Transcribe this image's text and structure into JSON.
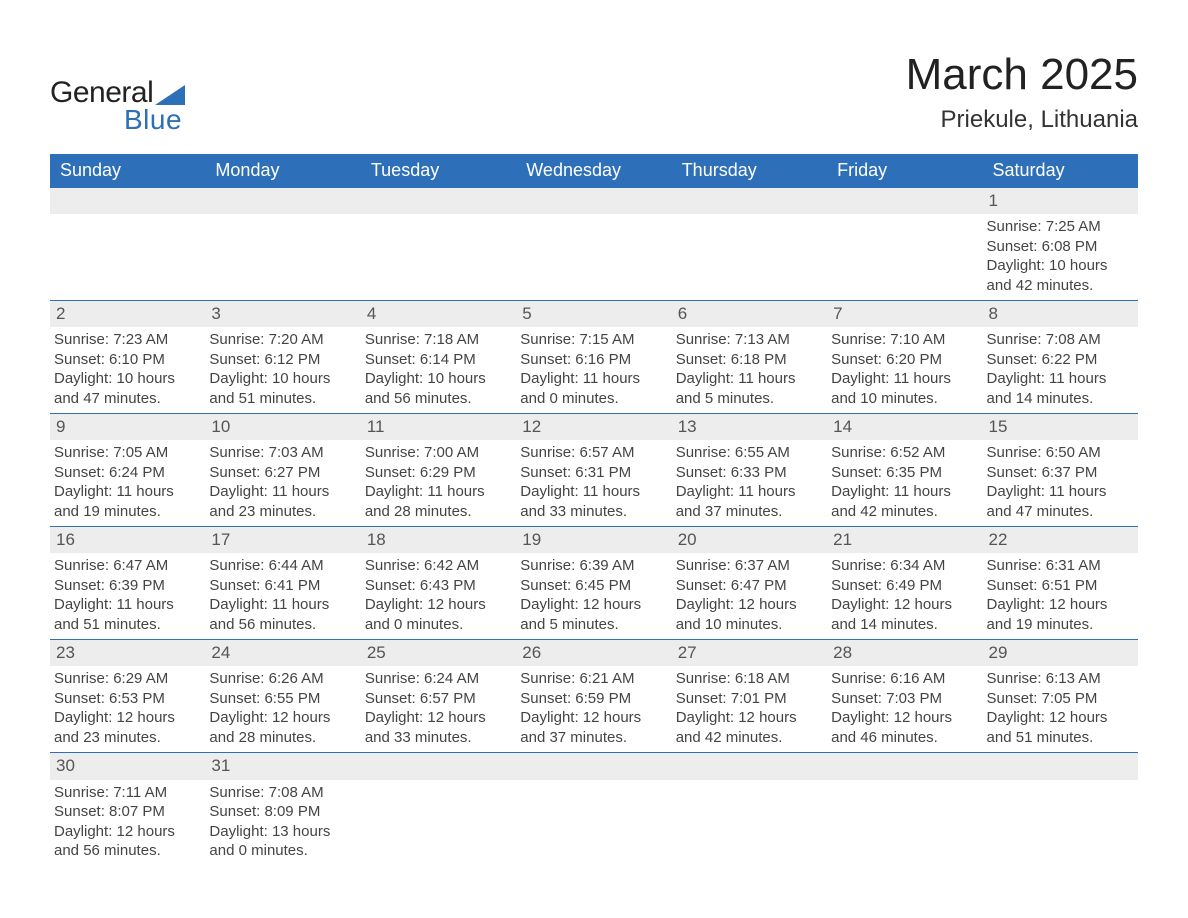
{
  "logo": {
    "word1": "General",
    "word2": "Blue",
    "accent": "#2d6fb8",
    "text_color": "#222222"
  },
  "title": "March 2025",
  "location": "Priekule, Lithuania",
  "colors": {
    "header_bg": "#2d6fb8",
    "header_text": "#ffffff",
    "daynum_bg": "#ededed",
    "border": "#2d6fb8",
    "body_text": "#444444",
    "page_bg": "#ffffff"
  },
  "typography": {
    "title_fontsize": 44,
    "location_fontsize": 24,
    "dayheader_fontsize": 18,
    "daynum_fontsize": 17,
    "body_fontsize": 15
  },
  "day_headers": [
    "Sunday",
    "Monday",
    "Tuesday",
    "Wednesday",
    "Thursday",
    "Friday",
    "Saturday"
  ],
  "labels": {
    "sunrise": "Sunrise:",
    "sunset": "Sunset:",
    "daylight": "Daylight:"
  },
  "weeks": [
    [
      null,
      null,
      null,
      null,
      null,
      null,
      {
        "n": "1",
        "sunrise": "7:25 AM",
        "sunset": "6:08 PM",
        "daylight": "10 hours and 42 minutes."
      }
    ],
    [
      {
        "n": "2",
        "sunrise": "7:23 AM",
        "sunset": "6:10 PM",
        "daylight": "10 hours and 47 minutes."
      },
      {
        "n": "3",
        "sunrise": "7:20 AM",
        "sunset": "6:12 PM",
        "daylight": "10 hours and 51 minutes."
      },
      {
        "n": "4",
        "sunrise": "7:18 AM",
        "sunset": "6:14 PM",
        "daylight": "10 hours and 56 minutes."
      },
      {
        "n": "5",
        "sunrise": "7:15 AM",
        "sunset": "6:16 PM",
        "daylight": "11 hours and 0 minutes."
      },
      {
        "n": "6",
        "sunrise": "7:13 AM",
        "sunset": "6:18 PM",
        "daylight": "11 hours and 5 minutes."
      },
      {
        "n": "7",
        "sunrise": "7:10 AM",
        "sunset": "6:20 PM",
        "daylight": "11 hours and 10 minutes."
      },
      {
        "n": "8",
        "sunrise": "7:08 AM",
        "sunset": "6:22 PM",
        "daylight": "11 hours and 14 minutes."
      }
    ],
    [
      {
        "n": "9",
        "sunrise": "7:05 AM",
        "sunset": "6:24 PM",
        "daylight": "11 hours and 19 minutes."
      },
      {
        "n": "10",
        "sunrise": "7:03 AM",
        "sunset": "6:27 PM",
        "daylight": "11 hours and 23 minutes."
      },
      {
        "n": "11",
        "sunrise": "7:00 AM",
        "sunset": "6:29 PM",
        "daylight": "11 hours and 28 minutes."
      },
      {
        "n": "12",
        "sunrise": "6:57 AM",
        "sunset": "6:31 PM",
        "daylight": "11 hours and 33 minutes."
      },
      {
        "n": "13",
        "sunrise": "6:55 AM",
        "sunset": "6:33 PM",
        "daylight": "11 hours and 37 minutes."
      },
      {
        "n": "14",
        "sunrise": "6:52 AM",
        "sunset": "6:35 PM",
        "daylight": "11 hours and 42 minutes."
      },
      {
        "n": "15",
        "sunrise": "6:50 AM",
        "sunset": "6:37 PM",
        "daylight": "11 hours and 47 minutes."
      }
    ],
    [
      {
        "n": "16",
        "sunrise": "6:47 AM",
        "sunset": "6:39 PM",
        "daylight": "11 hours and 51 minutes."
      },
      {
        "n": "17",
        "sunrise": "6:44 AM",
        "sunset": "6:41 PM",
        "daylight": "11 hours and 56 minutes."
      },
      {
        "n": "18",
        "sunrise": "6:42 AM",
        "sunset": "6:43 PM",
        "daylight": "12 hours and 0 minutes."
      },
      {
        "n": "19",
        "sunrise": "6:39 AM",
        "sunset": "6:45 PM",
        "daylight": "12 hours and 5 minutes."
      },
      {
        "n": "20",
        "sunrise": "6:37 AM",
        "sunset": "6:47 PM",
        "daylight": "12 hours and 10 minutes."
      },
      {
        "n": "21",
        "sunrise": "6:34 AM",
        "sunset": "6:49 PM",
        "daylight": "12 hours and 14 minutes."
      },
      {
        "n": "22",
        "sunrise": "6:31 AM",
        "sunset": "6:51 PM",
        "daylight": "12 hours and 19 minutes."
      }
    ],
    [
      {
        "n": "23",
        "sunrise": "6:29 AM",
        "sunset": "6:53 PM",
        "daylight": "12 hours and 23 minutes."
      },
      {
        "n": "24",
        "sunrise": "6:26 AM",
        "sunset": "6:55 PM",
        "daylight": "12 hours and 28 minutes."
      },
      {
        "n": "25",
        "sunrise": "6:24 AM",
        "sunset": "6:57 PM",
        "daylight": "12 hours and 33 minutes."
      },
      {
        "n": "26",
        "sunrise": "6:21 AM",
        "sunset": "6:59 PM",
        "daylight": "12 hours and 37 minutes."
      },
      {
        "n": "27",
        "sunrise": "6:18 AM",
        "sunset": "7:01 PM",
        "daylight": "12 hours and 42 minutes."
      },
      {
        "n": "28",
        "sunrise": "6:16 AM",
        "sunset": "7:03 PM",
        "daylight": "12 hours and 46 minutes."
      },
      {
        "n": "29",
        "sunrise": "6:13 AM",
        "sunset": "7:05 PM",
        "daylight": "12 hours and 51 minutes."
      }
    ],
    [
      {
        "n": "30",
        "sunrise": "7:11 AM",
        "sunset": "8:07 PM",
        "daylight": "12 hours and 56 minutes."
      },
      {
        "n": "31",
        "sunrise": "7:08 AM",
        "sunset": "8:09 PM",
        "daylight": "13 hours and 0 minutes."
      },
      null,
      null,
      null,
      null,
      null
    ]
  ]
}
